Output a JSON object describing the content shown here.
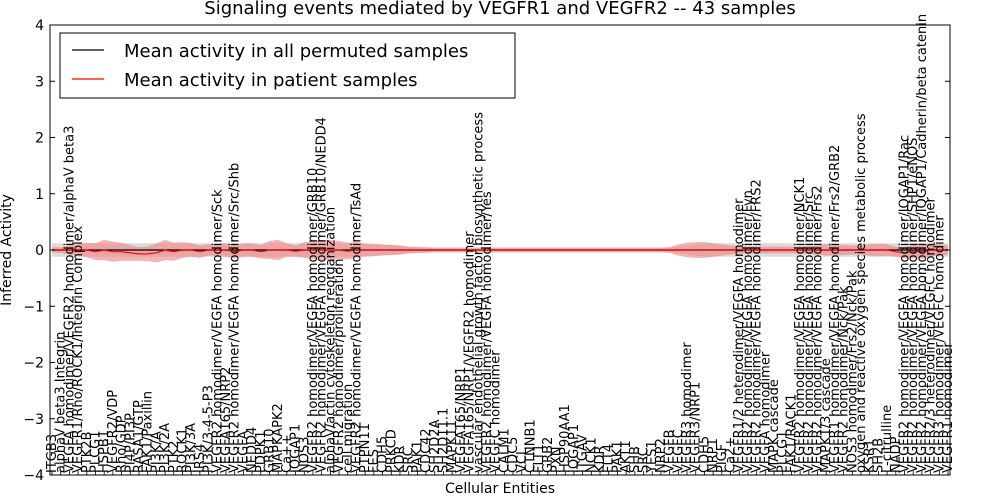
{
  "chart_data": {
    "type": "line",
    "title": "Signaling events mediated by VEGFR1 and VEGFR2 -- 43 samples",
    "xlabel": "Cellular Entities",
    "ylabel": "Inferred Activity",
    "ylim": [
      -4,
      4
    ],
    "yticks": [
      "−4",
      "−3",
      "−2",
      "−1",
      "0",
      "1",
      "2",
      "3",
      "4"
    ],
    "legend_position": "top-left",
    "categories": [
      "ITGB3",
      "alphaV beta3 Integrin",
      "VEGFA homodimer/VEGFR2 homodimer/alphaV beta3",
      "VEGFR1/Rho/ROCK1/Integrin Complex",
      "PTK2B",
      "PLCG1",
      "HSPB1",
      "VEGFR2/VDP",
      "Rho/GDP",
      "PI4P/PI3P",
      "RASA1/GTP",
      "FAK1/Paxillin",
      "PI3K/A",
      "PI3K/2A",
      "PTK2",
      "ROCK1",
      "PI3K/3A",
      "IRS4",
      "PI3K/3-4-5-P3",
      "VEGFR2 homodimer/VEGFA homodimer/Sck",
      "VEGFA165/NRP2",
      "VEGFR2 homodimer/VEGFA homodimer/Src/Shb",
      "VEGFA",
      "NEDD4",
      "PDPK1",
      "GRB10",
      "MAPKAPK2",
      "Ca++",
      "IQGAP1",
      "NOS3",
      "VEGFR2 homodimer/VEGFA homodimer/GRB10",
      "VEGFR2 homodimer/VEGFA homodimer/GRB10/NEDD4",
      "alphaV/actin cytoskeleton reorganization",
      "VEGFR2 homodimer/proliferation",
      "cell migration",
      "VEGFR2 homodimer/VEGFA homodimer/TsAd",
      "PTPN11",
      "FES",
      "CDH5",
      "PRKCD",
      "KDR",
      "SRC",
      "PAK1",
      "CDC42",
      "SH2D2A",
      "SH2D11.1",
      "MAPK11",
      "VEGFA165/NRP1",
      "VEGFA165/NRP1/VEGFR2 homodimer",
      "vascular endothelial growth factor biosynthetic process",
      "VEGFR2 homodimer/VEGFA homodimer/Yes",
      "VEGFC homodimer",
      "CALM1",
      "CDC5",
      "VCL",
      "CTNNB1",
      "FLT1",
      "GRB2",
      "PXN",
      "HSP90AA1",
      "IQGAP1",
      "ITGAV",
      "NCK1",
      "KDR",
      "FLT4",
      "PAK1",
      "AKT1",
      "SHB",
      "SRC",
      "YES1",
      "NRP2",
      "VEGFB",
      "VEGFC",
      "VEGFR3 homodimer",
      "VEGFR3/NRP1",
      "CDH5",
      "NRP1",
      "PIGF",
      "Ca2+",
      "VEGFR1/2 heterodimer/VEGFA homodimer",
      "VEGFR2 homodimer/VEGFA homodimer/Fyn",
      "VEGFR2 homodimer/VEGFA homodimer/FRS2",
      "VEGFA homodimer",
      "MAPK cascade",
      "PLCG1",
      "FAK1/RACK1",
      "VEGFR2 homodimer/VEGFA homodimer/NCK1",
      "VEGFR2 homodimer/VEGFA homodimer/Src",
      "VEGFR2 homodimer/VEGFA homodimer/Frs2",
      "MAPK1/3 cascade",
      "VEGFR1 homodimer/VEGFA homodimer/Frs2/GRB2",
      "VEGFR2 homodimer/Nck/Pak",
      "NOS3 homodimer/Frs2/Nck/Pak",
      "oxygen and reactive oxygen species metabolic process",
      "KSR1",
      "SH2B",
      "L-citrulline",
      "NADP",
      "VEGFR2 homodimer/VEGFA homodimer/IQGAP1/Rac",
      "VEGFR2 homodimer/VEGFA homodimer/SHP1/eNOS",
      "VEGFR2 homodimer/VEGFA homodimer/IQGAP1/Cadherin/beta catenin",
      "VEGFR2/3 heterodimer/VEGFC homodimer",
      "VEGFR3 homodimer/VEGFC homodimer",
      "VEGFR1 homodimer"
    ],
    "series": [
      {
        "name": "Mean activity in all permuted samples",
        "color": "#000000",
        "band_color": "#c0c0c0",
        "values": [
          0.0,
          0.0,
          0.0,
          0.0,
          0.0,
          0.0,
          0.0,
          0.0,
          0.0,
          0.0,
          0.0,
          0.0,
          0.0,
          0.0,
          0.0,
          0.0,
          0.0,
          0.0,
          0.0,
          0.0,
          0.0,
          0.0,
          0.0,
          0.0,
          0.0,
          0.0,
          0.0,
          0.0,
          0.0,
          0.0,
          0.0,
          0.0,
          0.0,
          0.0,
          0.0,
          0.0,
          0.0,
          0.0,
          0.0,
          0.0,
          0.0,
          0.0,
          0.0,
          0.0,
          0.0,
          0.0,
          0.0,
          0.0,
          0.0,
          0.0,
          0.0,
          0.0,
          0.0,
          0.0,
          0.0,
          0.0,
          0.0,
          0.0,
          0.0,
          0.0,
          0.0,
          0.0,
          0.0,
          0.0,
          0.0,
          0.0,
          0.0,
          0.0,
          0.0,
          0.0,
          0.0,
          0.0,
          0.0,
          0.0,
          0.0,
          0.0,
          0.0,
          0.0,
          0.0,
          0.0,
          0.0,
          0.0,
          0.0,
          0.0,
          0.0,
          0.0,
          0.0,
          0.0,
          0.0,
          0.0,
          0.0,
          0.0,
          0.0,
          0.0,
          0.0,
          0.0,
          0.0,
          0.0,
          0.0,
          0.0,
          0.0,
          0.0,
          0.0,
          0.0
        ],
        "band": [
          0.12,
          0.12,
          0.12,
          0.12,
          0.12,
          0.12,
          0.12,
          0.12,
          0.12,
          0.12,
          0.12,
          0.12,
          0.12,
          0.12,
          0.12,
          0.12,
          0.12,
          0.12,
          0.12,
          0.12,
          0.12,
          0.12,
          0.12,
          0.12,
          0.12,
          0.12,
          0.12,
          0.12,
          0.12,
          0.12,
          0.12,
          0.12,
          0.12,
          0.12,
          0.12,
          0.12,
          0.1,
          0.1,
          0.09,
          0.09,
          0.08,
          0.06,
          0.06,
          0.06,
          0.05,
          0.05,
          0.05,
          0.05,
          0.05,
          0.05,
          0.05,
          0.05,
          0.05,
          0.05,
          0.05,
          0.05,
          0.05,
          0.05,
          0.05,
          0.05,
          0.05,
          0.05,
          0.05,
          0.05,
          0.05,
          0.05,
          0.05,
          0.05,
          0.05,
          0.05,
          0.05,
          0.05,
          0.06,
          0.08,
          0.1,
          0.12,
          0.12,
          0.12,
          0.12,
          0.12,
          0.12,
          0.12,
          0.12,
          0.12,
          0.12,
          0.12,
          0.12,
          0.12,
          0.12,
          0.12,
          0.12,
          0.12,
          0.12,
          0.12,
          0.12,
          0.12,
          0.12,
          0.12,
          0.12,
          0.12,
          0.12,
          0.12,
          0.12,
          0.12
        ]
      },
      {
        "name": "Mean activity in patient samples",
        "color": "#ff0000",
        "band_color": "#f08080",
        "values": [
          0.0,
          0.0,
          0.0,
          0.0,
          0.0,
          -0.03,
          0.0,
          -0.03,
          -0.03,
          -0.05,
          -0.07,
          -0.07,
          -0.05,
          0.0,
          -0.03,
          0.0,
          0.0,
          -0.03,
          0.0,
          0.0,
          0.0,
          -0.03,
          0.0,
          0.0,
          -0.03,
          0.0,
          0.0,
          0.0,
          -0.02,
          0.0,
          0.0,
          0.0,
          0.0,
          0.0,
          -0.02,
          0.0,
          0.0,
          0.0,
          0.0,
          0.0,
          0.0,
          0.0,
          0.0,
          0.0,
          0.0,
          0.0,
          0.0,
          0.0,
          0.0,
          0.0,
          0.0,
          0.0,
          0.0,
          0.0,
          0.0,
          0.0,
          0.0,
          0.0,
          0.0,
          0.0,
          0.0,
          0.0,
          0.0,
          0.0,
          0.0,
          0.0,
          0.0,
          0.0,
          0.0,
          0.0,
          0.0,
          0.0,
          0.0,
          0.0,
          0.0,
          0.0,
          0.0,
          0.0,
          0.0,
          0.0,
          0.0,
          0.0,
          0.0,
          0.0,
          0.0,
          0.0,
          0.0,
          0.0,
          0.0,
          0.0,
          0.0,
          0.0,
          0.0,
          0.0,
          0.0,
          0.0,
          0.0,
          -0.03,
          -0.05,
          -0.03,
          -0.03,
          0.0,
          0.0,
          0.0
        ],
        "band": [
          0.05,
          0.05,
          0.08,
          0.1,
          0.13,
          0.15,
          0.18,
          0.18,
          0.16,
          0.14,
          0.12,
          0.13,
          0.17,
          0.18,
          0.16,
          0.14,
          0.12,
          0.11,
          0.1,
          0.11,
          0.12,
          0.12,
          0.12,
          0.12,
          0.12,
          0.16,
          0.18,
          0.12,
          0.1,
          0.14,
          0.16,
          0.18,
          0.18,
          0.16,
          0.15,
          0.14,
          0.12,
          0.11,
          0.1,
          0.09,
          0.08,
          0.06,
          0.05,
          0.04,
          0.03,
          0.03,
          0.03,
          0.03,
          0.03,
          0.03,
          0.03,
          0.03,
          0.03,
          0.03,
          0.03,
          0.03,
          0.03,
          0.03,
          0.03,
          0.03,
          0.03,
          0.03,
          0.03,
          0.03,
          0.03,
          0.03,
          0.03,
          0.03,
          0.03,
          0.03,
          0.03,
          0.05,
          0.1,
          0.13,
          0.14,
          0.14,
          0.12,
          0.1,
          0.08,
          0.07,
          0.06,
          0.06,
          0.06,
          0.06,
          0.06,
          0.06,
          0.06,
          0.07,
          0.08,
          0.1,
          0.1,
          0.09,
          0.08,
          0.08,
          0.1,
          0.11,
          0.1,
          0.09,
          0.1,
          0.12,
          0.13,
          0.12,
          0.1,
          0.08
        ]
      }
    ]
  }
}
